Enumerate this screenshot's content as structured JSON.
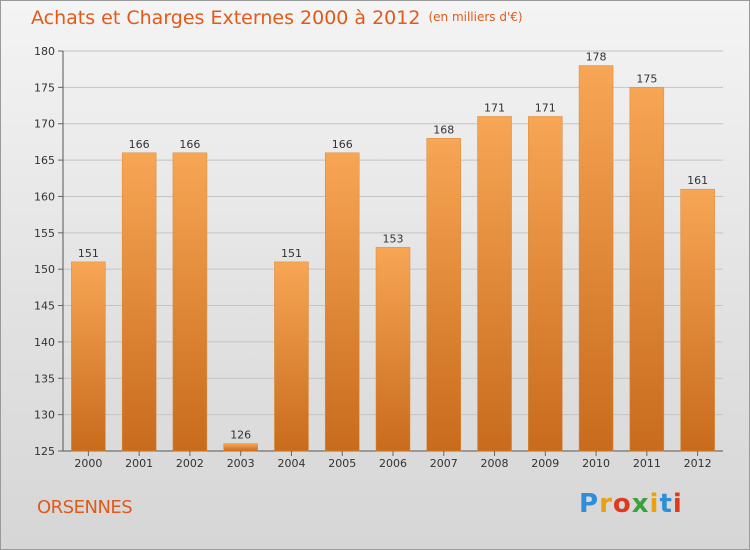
{
  "title": "Achats et Charges Externes 2000 à 2012",
  "subtitle": "(en milliers d'€)",
  "commune": "ORSENNES",
  "logo": {
    "text": "Proxiti",
    "colors": [
      "#2e8fd6",
      "#e8a10f",
      "#e03a1e",
      "#3aa23a",
      "#e8a10f",
      "#2e8fd6",
      "#e03a1e"
    ]
  },
  "chart_data": {
    "type": "bar",
    "title": "Achats et Charges Externes 2000 à 2012",
    "subtitle": "(en milliers d'€)",
    "categories": [
      "2000",
      "2001",
      "2002",
      "2003",
      "2004",
      "2005",
      "2006",
      "2007",
      "2008",
      "2009",
      "2010",
      "2011",
      "2012"
    ],
    "values": [
      151,
      166,
      166,
      126,
      151,
      166,
      153,
      168,
      171,
      171,
      178,
      175,
      161
    ],
    "ylim": [
      125,
      180
    ],
    "yticks": [
      125,
      130,
      135,
      140,
      145,
      150,
      155,
      160,
      165,
      170,
      175,
      180
    ],
    "grid": true,
    "bar_color_top": "#f7a655",
    "bar_color_bottom": "#c86b1c"
  }
}
